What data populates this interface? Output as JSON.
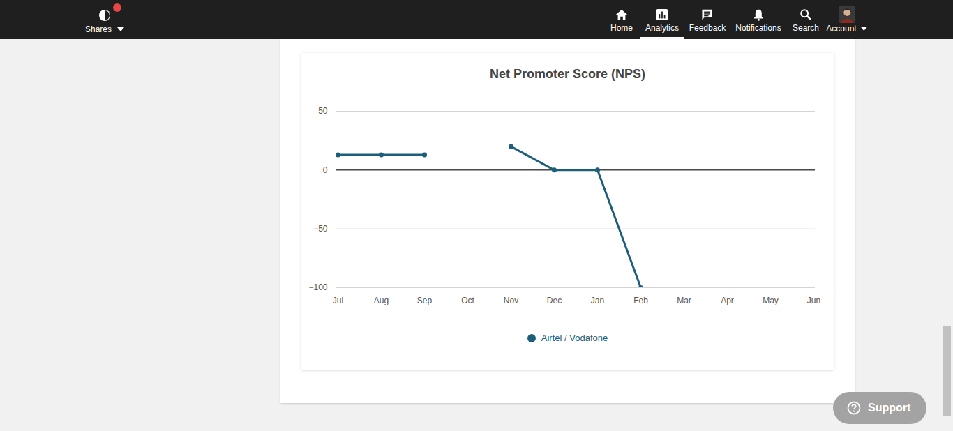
{
  "page": {
    "nav": {
      "brand": "Shares",
      "items": [
        "Home",
        "Analytics",
        "Feedback",
        "Notifications",
        "Search",
        "Account"
      ],
      "active": "Analytics"
    },
    "support_button": "Support"
  },
  "chart_data": {
    "type": "line",
    "title": "Net Promoter Score (NPS)",
    "categories": [
      "Jul",
      "Aug",
      "Sep",
      "Oct",
      "Nov",
      "Dec",
      "Jan",
      "Feb",
      "Mar",
      "Apr",
      "May",
      "Jun"
    ],
    "series": [
      {
        "name": "Airtel / Vodafone",
        "color": "#1c5f7a",
        "values": [
          13,
          13,
          13,
          null,
          20,
          0,
          0,
          -100,
          null,
          null,
          null,
          null
        ]
      }
    ],
    "ylim": [
      -100,
      50
    ],
    "yticks": [
      -100,
      -50,
      0,
      50
    ],
    "grid": true,
    "legend": "bottom",
    "marker": "circle"
  }
}
